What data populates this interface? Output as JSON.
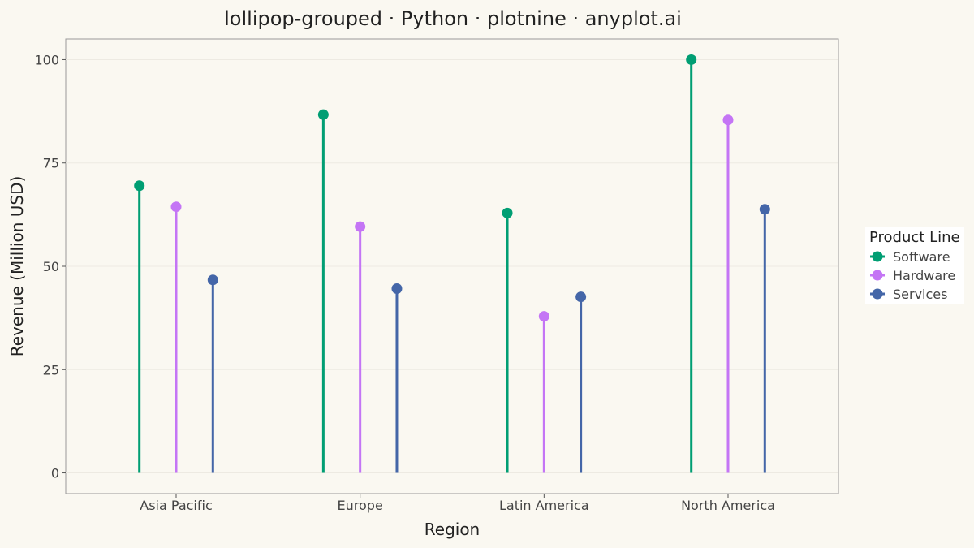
{
  "chart_data": {
    "type": "lollipop",
    "title": "lollipop-grouped · Python · plotnine · anyplot.ai",
    "xlabel": "Region",
    "ylabel": "Revenue (Million USD)",
    "categories": [
      "Asia Pacific",
      "Europe",
      "Latin America",
      "North America"
    ],
    "ylim": [
      -5,
      105
    ],
    "yticks": [
      0,
      25,
      50,
      75,
      100
    ],
    "grid": true,
    "legend": {
      "title": "Product Line",
      "position": "right"
    },
    "series": [
      {
        "name": "Software",
        "color": "#009E73",
        "values": [
          69.5,
          86.7,
          62.9,
          100.0
        ]
      },
      {
        "name": "Hardware",
        "color": "#C475F5",
        "values": [
          64.4,
          59.6,
          37.9,
          85.4
        ]
      },
      {
        "name": "Services",
        "color": "#4466A8",
        "values": [
          46.7,
          44.6,
          42.6,
          63.8
        ]
      }
    ]
  }
}
